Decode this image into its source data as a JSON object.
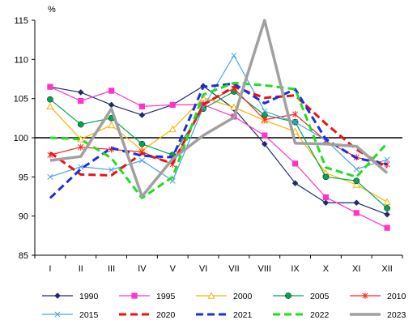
{
  "chart_data": {
    "type": "line",
    "unit_label": "%",
    "categories": [
      "I",
      "II",
      "III",
      "IV",
      "V",
      "VI",
      "VII",
      "VIII",
      "IX",
      "X",
      "XI",
      "XII"
    ],
    "ylim": [
      85,
      115
    ],
    "yticks": [
      85,
      90,
      95,
      100,
      105,
      110,
      115
    ],
    "reference_line": 100,
    "grid": false,
    "legend_position": "bottom",
    "series": [
      {
        "name": "1990",
        "color": "#1f2a6b",
        "dash": "solid",
        "width": 1.2,
        "marker": "diamond",
        "values": [
          106.5,
          105.8,
          104.2,
          102.9,
          104.2,
          106.6,
          103.7,
          99.2,
          94.2,
          91.7,
          91.7,
          90.2
        ]
      },
      {
        "name": "1995",
        "color": "#ff33cc",
        "dash": "solid",
        "width": 1.2,
        "marker": "square",
        "values": [
          106.5,
          104.7,
          106.0,
          104.0,
          104.2,
          104.2,
          102.7,
          100.3,
          96.7,
          92.4,
          90.4,
          88.5
        ]
      },
      {
        "name": "2000",
        "color": "#ffb000",
        "dash": "solid",
        "width": 1.2,
        "marker": "triangle",
        "values": [
          104.0,
          99.8,
          101.6,
          98.4,
          101.1,
          105.1,
          103.9,
          102.2,
          100.8,
          95.5,
          94.0,
          91.8
        ]
      },
      {
        "name": "2005",
        "color": "#00a651",
        "dash": "solid",
        "width": 1.2,
        "marker": "circle",
        "values": [
          104.9,
          101.7,
          102.5,
          99.2,
          97.8,
          103.7,
          105.9,
          102.9,
          102.0,
          95.0,
          94.5,
          91.0
        ]
      },
      {
        "name": "2010",
        "color": "#ff2020",
        "dash": "solid",
        "width": 1.2,
        "marker": "star",
        "values": [
          97.8,
          98.8,
          98.5,
          98.2,
          96.6,
          104.3,
          106.3,
          102.3,
          103.0,
          99.6,
          97.5,
          96.6
        ]
      },
      {
        "name": "2015",
        "color": "#4aa3df",
        "dash": "solid",
        "width": 1.2,
        "marker": "x",
        "values": [
          95.0,
          96.3,
          95.9,
          97.1,
          94.5,
          103.9,
          110.5,
          103.4,
          102.0,
          99.7,
          96.0,
          97.2
        ]
      },
      {
        "name": "2020",
        "color": "#ee1111",
        "dash": "dashed",
        "width": 3,
        "marker": "none",
        "values": [
          98.1,
          95.3,
          95.2,
          98.0,
          96.7,
          104.2,
          106.5,
          105.1,
          105.4,
          101.8,
          98.5,
          96.2
        ]
      },
      {
        "name": "2021",
        "color": "#1c2fdc",
        "dash": "dashed",
        "width": 3,
        "marker": "none",
        "values": [
          92.3,
          96.0,
          98.7,
          97.7,
          97.5,
          106.5,
          106.9,
          104.4,
          106.2,
          99.8,
          97.4,
          96.6
        ]
      },
      {
        "name": "2022",
        "color": "#22dd22",
        "dash": "dashed",
        "width": 3,
        "marker": "none",
        "values": [
          100.0,
          99.8,
          97.4,
          92.3,
          95.0,
          105.5,
          107.0,
          106.7,
          106.2,
          96.2,
          95.0,
          99.3
        ]
      },
      {
        "name": "2023",
        "color": "#a0a0a0",
        "dash": "solid",
        "width": 3.5,
        "marker": "none",
        "values": [
          97.1,
          97.6,
          103.7,
          92.5,
          97.3,
          100.3,
          102.6,
          115.0,
          99.3,
          99.2,
          98.9,
          95.5
        ]
      }
    ]
  }
}
